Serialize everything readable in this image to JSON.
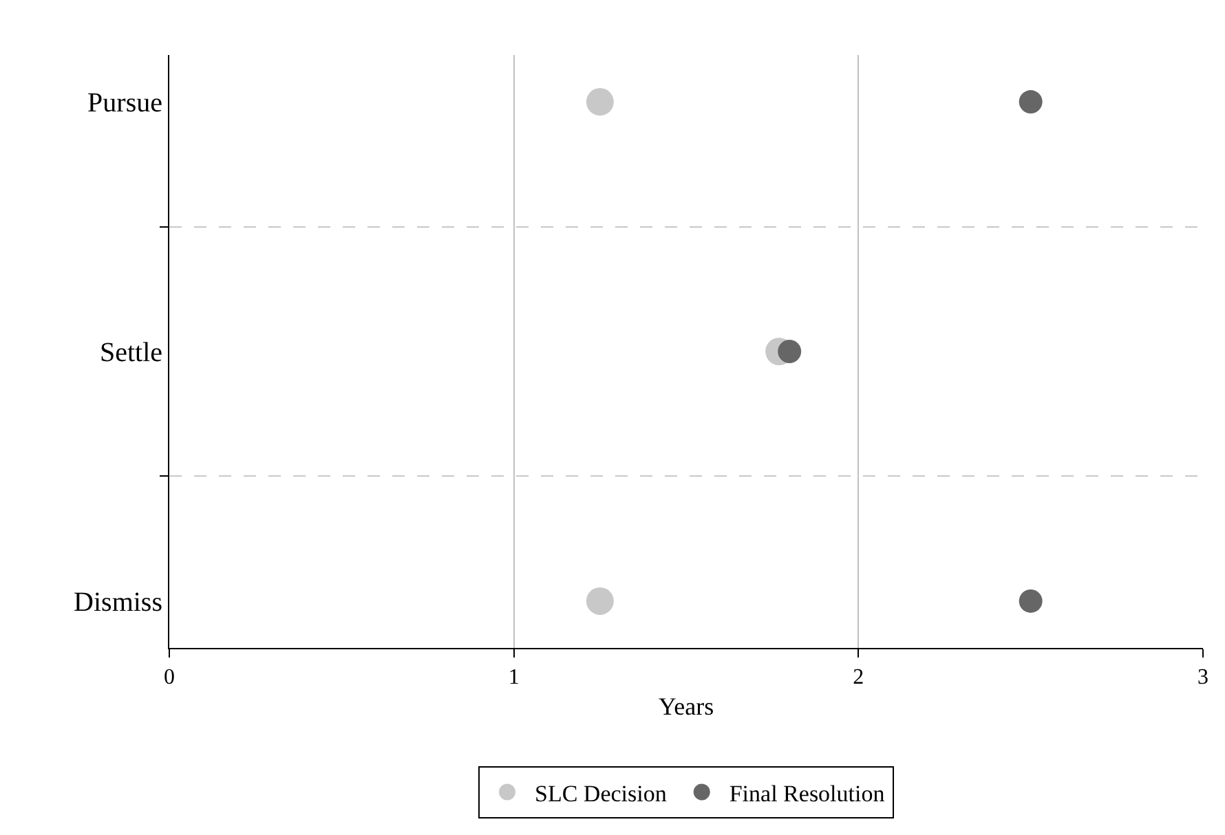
{
  "chart_data": {
    "type": "scatter",
    "categories": [
      "Pursue",
      "Settle",
      "Dismiss"
    ],
    "orientation": "horizontal",
    "xlabel": "Years",
    "series": [
      {
        "name": "SLC Decision",
        "color": "#c8c8c8",
        "values": [
          1.25,
          1.77,
          1.25
        ]
      },
      {
        "name": "Final Resolution",
        "color": "#666666",
        "values": [
          2.5,
          1.8,
          2.5
        ]
      }
    ],
    "xlim": [
      0,
      3
    ],
    "xticks": [
      0,
      1,
      2,
      3
    ],
    "grid": true,
    "legend": "bottom",
    "marker": "circle"
  }
}
